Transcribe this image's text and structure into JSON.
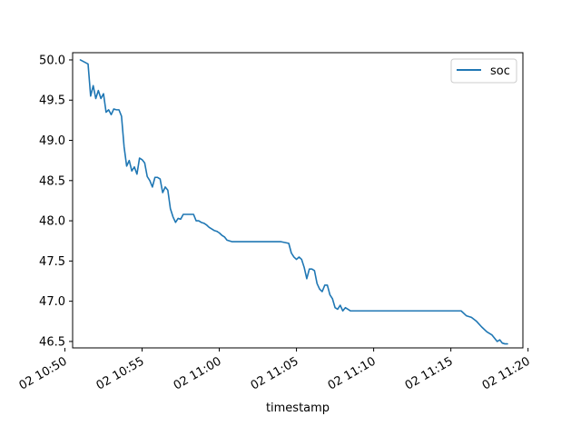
{
  "chart_data": {
    "type": "line",
    "title": "",
    "xlabel": "timestamp",
    "ylabel": "",
    "xlim": [
      "10:50:30",
      "11:19:40"
    ],
    "ylim": [
      46.42,
      50.09
    ],
    "grid": false,
    "legend": {
      "position": "top-right",
      "entries": [
        "soc"
      ]
    },
    "x_ticks": [
      "02 10:50",
      "02 10:55",
      "02 11:00",
      "02 11:05",
      "02 11:10",
      "02 11:15",
      "02 11:20"
    ],
    "y_ticks": [
      "46.5",
      "47.0",
      "47.5",
      "48.0",
      "48.5",
      "49.0",
      "49.5",
      "50.0"
    ],
    "series": [
      {
        "name": "soc",
        "color": "#1f77b4",
        "x": [
          "10:51:00",
          "10:51:30",
          "10:51:40",
          "10:51:50",
          "10:52:00",
          "10:52:10",
          "10:52:20",
          "10:52:30",
          "10:52:40",
          "10:52:50",
          "10:53:00",
          "10:53:10",
          "10:53:20",
          "10:53:30",
          "10:53:40",
          "10:53:50",
          "10:54:00",
          "10:54:10",
          "10:54:20",
          "10:54:30",
          "10:54:40",
          "10:54:50",
          "10:55:00",
          "10:55:10",
          "10:55:20",
          "10:55:30",
          "10:55:40",
          "10:55:50",
          "10:56:00",
          "10:56:10",
          "10:56:20",
          "10:56:30",
          "10:56:40",
          "10:56:50",
          "10:57:00",
          "10:57:10",
          "10:57:20",
          "10:57:30",
          "10:57:40",
          "10:57:50",
          "10:58:00",
          "10:58:10",
          "10:58:20",
          "10:58:30",
          "10:58:40",
          "10:58:50",
          "10:59:00",
          "10:59:10",
          "10:59:20",
          "10:59:30",
          "10:59:40",
          "10:59:50",
          "11:00:00",
          "11:00:10",
          "11:00:20",
          "11:00:30",
          "11:00:40",
          "11:00:50",
          "11:01:00",
          "11:01:10",
          "11:01:20",
          "11:01:30",
          "11:01:40",
          "11:01:50",
          "11:02:00",
          "11:02:30",
          "11:03:00",
          "11:03:30",
          "11:04:00",
          "11:04:30",
          "11:04:40",
          "11:04:50",
          "11:05:00",
          "11:05:10",
          "11:05:20",
          "11:05:30",
          "11:05:40",
          "11:05:50",
          "11:06:00",
          "11:06:10",
          "11:06:20",
          "11:06:30",
          "11:06:40",
          "11:06:50",
          "11:07:00",
          "11:07:10",
          "11:07:20",
          "11:07:30",
          "11:07:40",
          "11:07:50",
          "11:08:00",
          "11:08:10",
          "11:08:20",
          "11:08:30",
          "11:08:40",
          "11:08:50",
          "11:09:00",
          "11:09:10",
          "11:09:20",
          "11:09:30",
          "11:10:00",
          "11:11:00",
          "11:12:00",
          "11:13:00",
          "11:14:00",
          "11:15:00",
          "11:15:40",
          "11:16:00",
          "11:16:20",
          "11:16:40",
          "11:17:00",
          "11:17:20",
          "11:17:40",
          "11:18:00",
          "11:18:10",
          "11:18:20",
          "11:18:30",
          "11:18:40"
        ],
        "y": [
          50.0,
          49.95,
          49.55,
          49.68,
          49.52,
          49.62,
          49.52,
          49.58,
          49.35,
          49.38,
          49.32,
          49.39,
          49.38,
          49.38,
          49.3,
          48.92,
          48.68,
          48.75,
          48.62,
          48.67,
          48.58,
          48.78,
          48.76,
          48.72,
          48.55,
          48.5,
          48.42,
          48.54,
          48.54,
          48.52,
          48.35,
          48.42,
          48.38,
          48.15,
          48.05,
          47.98,
          48.03,
          48.02,
          48.08,
          48.08,
          48.08,
          48.08,
          48.08,
          48.0,
          48.0,
          47.98,
          47.97,
          47.95,
          47.92,
          47.9,
          47.88,
          47.87,
          47.85,
          47.82,
          47.8,
          47.76,
          47.75,
          47.74,
          47.74,
          47.74,
          47.74,
          47.74,
          47.74,
          47.74,
          47.74,
          47.74,
          47.74,
          47.74,
          47.74,
          47.72,
          47.6,
          47.55,
          47.52,
          47.55,
          47.52,
          47.42,
          47.28,
          47.4,
          47.4,
          47.38,
          47.22,
          47.15,
          47.12,
          47.2,
          47.2,
          47.08,
          47.03,
          46.92,
          46.9,
          46.95,
          46.88,
          46.92,
          46.9,
          46.88,
          46.88,
          46.88,
          46.88,
          46.88,
          46.88,
          46.88,
          46.88,
          46.88,
          46.88,
          46.88,
          46.88,
          46.88,
          46.88,
          46.82,
          46.8,
          46.75,
          46.68,
          46.62,
          46.58,
          46.5,
          46.52,
          46.48,
          46.47,
          46.47
        ]
      }
    ]
  }
}
